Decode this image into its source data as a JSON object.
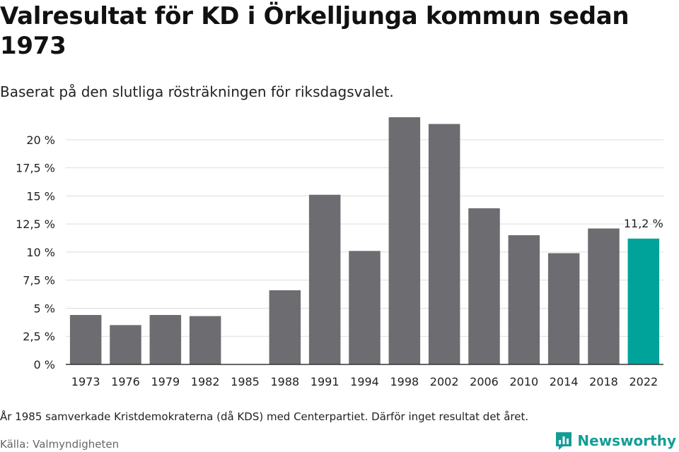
{
  "title": "Valresultat för KD i Örkelljunga kommun sedan 1973",
  "subtitle": "Baserat på den slutliga rösträkningen för riksdagsvalet.",
  "footnote": "År 1985 samverkade Kristdemokraterna (då KDS) med Centerpartiet. Därför inget resultat det året.",
  "source": "Källa: Valmyndigheten",
  "brand": "Newsworthy",
  "colors": {
    "bar": "#6d6c71",
    "highlight": "#00a39a",
    "grid": "#dddddd",
    "axis": "#333333",
    "brand": "#149d96"
  },
  "chart_data": {
    "type": "bar",
    "categories": [
      "1973",
      "1976",
      "1979",
      "1982",
      "1985",
      "1988",
      "1991",
      "1994",
      "1998",
      "2002",
      "2006",
      "2010",
      "2014",
      "2018",
      "2022"
    ],
    "values": [
      4.4,
      3.5,
      4.4,
      4.3,
      null,
      6.6,
      15.1,
      10.1,
      22.0,
      21.4,
      13.9,
      11.5,
      9.9,
      12.1,
      11.2
    ],
    "ylim": [
      0,
      22
    ],
    "yticks": [
      0,
      2.5,
      5,
      7.5,
      10,
      12.5,
      15,
      17.5,
      20
    ],
    "ytick_labels": [
      "0 %",
      "2,5 %",
      "5 %",
      "7,5 %",
      "10 %",
      "12,5 %",
      "15 %",
      "17,5 %",
      "20 %"
    ],
    "highlight_index": 14,
    "data_labels": [
      {
        "index": 14,
        "text": "11,2 %"
      }
    ],
    "xlabel": "",
    "ylabel": "",
    "grid": true
  }
}
